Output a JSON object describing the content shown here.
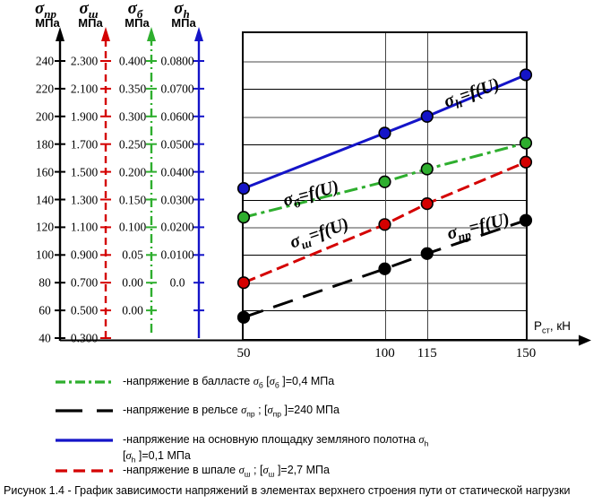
{
  "figure": {
    "caption": "Рисунок 1.4 - График зависимости напряжений в элементах верхнего строения пути от статической нагрузки"
  },
  "colors": {
    "black": "#000000",
    "red": "#d40000",
    "green": "#2eae2e",
    "blue": "#1414c8",
    "grid_gray": "#a4a4a4",
    "grid_dark": "#444444"
  },
  "x_axis": {
    "label_segments": [
      {
        "t": "P"
      },
      {
        "t": "ст",
        "sub": true
      },
      {
        "t": ", кН"
      }
    ],
    "ticks": [
      "50",
      "100",
      "115",
      "150"
    ],
    "tick_values": [
      50,
      100,
      115,
      150
    ]
  },
  "y_axes": [
    {
      "id": "sigma_pr",
      "color_key": "black",
      "unit": "МПа",
      "style": "solid",
      "symbol_segments": [
        {
          "t": "σ"
        },
        {
          "t": "пр",
          "sub": true
        }
      ],
      "tick_labels": [
        "240",
        "220",
        "200",
        "180",
        "160",
        "140",
        "120",
        "100",
        "80",
        "60",
        "40"
      ],
      "top_value": 240,
      "step": 20
    },
    {
      "id": "sigma_sh",
      "color_key": "red",
      "unit": "МПа",
      "style": "dashed",
      "symbol_segments": [
        {
          "t": "σ"
        },
        {
          "t": "ш",
          "sub": true
        }
      ],
      "tick_labels": [
        "2.300",
        "2.100",
        "1.900",
        "1.700",
        "1.500",
        "1.300",
        "1.100",
        "0.900",
        "0.700",
        "0.500",
        "0.300"
      ],
      "top_value": 2.3,
      "step": 0.2
    },
    {
      "id": "sigma_b",
      "color_key": "green",
      "unit": "МПа",
      "style": "dashdot",
      "symbol_segments": [
        {
          "t": "σ"
        },
        {
          "t": "б",
          "sub": true
        }
      ],
      "tick_labels": [
        "0.400",
        "0.350",
        "0.300",
        "0.250",
        "0.200",
        "0.150",
        "0.100",
        "0.05",
        "0.00",
        "0.00"
      ],
      "top_value": 0.4,
      "step": 0.05
    },
    {
      "id": "sigma_h",
      "color_key": "blue",
      "unit": "МПа",
      "style": "solid",
      "symbol_segments": [
        {
          "t": "σ"
        },
        {
          "t": "h",
          "sub": true
        }
      ],
      "tick_labels": [
        "0.0800",
        "0.0700",
        "0.0600",
        "0.0500",
        "0.0400",
        "0.0300",
        "0.0200",
        "0.0100",
        "0.0"
      ],
      "top_value": 0.08,
      "step": 0.01
    }
  ],
  "chart_data": {
    "type": "line",
    "x": [
      50,
      100,
      115,
      150
    ],
    "xlabel": "Pст, кН",
    "x_ticks": [
      "50",
      "100",
      "115",
      "150"
    ],
    "grid": true,
    "legend_position": "below",
    "series": [
      {
        "id": "sigma_pr",
        "name": "σпр=f(U)",
        "unit": "МПа",
        "color": "#000000",
        "line_style": "long-dash",
        "axis_range": [
          40,
          240
        ],
        "values": [
          55,
          90,
          101,
          125
        ]
      },
      {
        "id": "sigma_sh",
        "name": "σш=f(U)",
        "unit": "МПа",
        "color": "#d40000",
        "line_style": "dashed",
        "axis_range": [
          0.3,
          2.3
        ],
        "values": [
          0.7,
          1.12,
          1.27,
          1.57
        ]
      },
      {
        "id": "sigma_b",
        "name": "σб=f(U)",
        "unit": "МПа",
        "color": "#2eae2e",
        "line_style": "dash-dot",
        "axis_range": [
          0.0,
          0.4
        ],
        "values": [
          0.118,
          0.182,
          0.205,
          0.252
        ]
      },
      {
        "id": "sigma_h",
        "name": "σh=f(U)",
        "unit": "МПа",
        "color": "#1414c8",
        "line_style": "solid",
        "axis_range": [
          0.0,
          0.08
        ],
        "values": [
          0.034,
          0.054,
          0.06,
          0.075
        ]
      }
    ],
    "curve_labels": [
      {
        "series": "sigma_h",
        "segments": [
          {
            "t": "σ",
            "i": true
          },
          {
            "t": "h",
            "sub": true,
            "i": true
          },
          {
            "t": "=f(U)",
            "i": true
          }
        ]
      },
      {
        "series": "sigma_b",
        "segments": [
          {
            "t": "σ",
            "i": true
          },
          {
            "t": "б",
            "sub": true,
            "i": true
          },
          {
            "t": "=f(U)",
            "i": true
          }
        ]
      },
      {
        "series": "sigma_sh",
        "segments": [
          {
            "t": "σ",
            "i": true
          },
          {
            "t": "ш",
            "sub": true,
            "i": true
          },
          {
            "t": "=f(U)",
            "i": true
          }
        ]
      },
      {
        "series": "sigma_pr",
        "segments": [
          {
            "t": "σ",
            "i": true
          },
          {
            "t": "пр",
            "sub": true,
            "i": true
          },
          {
            "t": "=f(U)",
            "i": true
          }
        ]
      }
    ]
  },
  "legend": {
    "rows": [
      {
        "series": "sigma_b",
        "line1": [
          {
            "t": "-напряжение в балласте "
          },
          {
            "t": "σ",
            "i": true
          },
          {
            "t": "б",
            "sub": true
          },
          {
            "t": " ["
          },
          {
            "t": "σ",
            "i": true
          },
          {
            "t": "б",
            "sub": true
          },
          {
            "t": " ]=0,4 МПа"
          }
        ]
      },
      {
        "series": "sigma_pr",
        "line1": [
          {
            "t": "-напряжение в рельсе "
          },
          {
            "t": "σ",
            "i": true
          },
          {
            "t": "пр",
            "sub": true
          },
          {
            "t": " ; ["
          },
          {
            "t": "σ",
            "i": true
          },
          {
            "t": "пр",
            "sub": true
          },
          {
            "t": " ]=240 МПа"
          }
        ]
      },
      {
        "series": "sigma_h",
        "line1": [
          {
            "t": "-напряжение на основную площадку земляного полотна  "
          },
          {
            "t": "σ",
            "i": true
          },
          {
            "t": "h",
            "sub": true
          }
        ],
        "line2": [
          {
            "t": "["
          },
          {
            "t": "σ",
            "i": true
          },
          {
            "t": "h",
            "sub": true
          },
          {
            "t": " ]=0,1 МПа"
          }
        ]
      },
      {
        "series": "sigma_sh",
        "line1": [
          {
            "t": "-напряжение в шпале "
          },
          {
            "t": "σ",
            "i": true
          },
          {
            "t": "ш",
            "sub": true
          },
          {
            "t": " ; ["
          },
          {
            "t": "σ",
            "i": true
          },
          {
            "t": "ш",
            "sub": true
          },
          {
            "t": " ]=2,7 МПа"
          }
        ]
      }
    ]
  }
}
